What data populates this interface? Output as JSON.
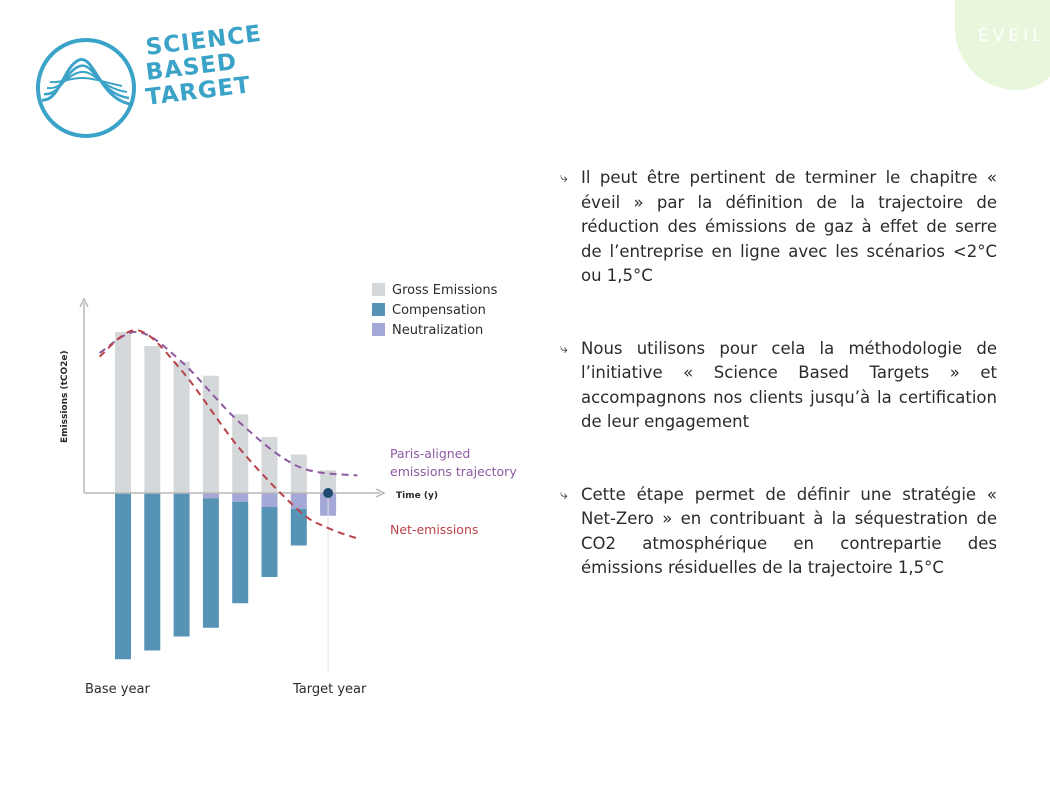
{
  "logo": {
    "lines": [
      "SCIENCE",
      "BASED",
      "TARGET"
    ]
  },
  "tag": {
    "label": "ÉVEIL"
  },
  "bullets": [
    "Il peut être pertinent de terminer le chapitre « éveil » par la définition de la trajectoire de réduction des émissions de gaz à effet de serre de l’entreprise en ligne avec les scénarios <2°C ou 1,5°C",
    "Nous utilisons pour cela la méthodologie de l’initiative « Science Based Targets » et accompagnons nos clients jusqu’à la certification de leur engagement",
    "Cette étape permet de définir une stratégie « Net-Zero » en contribuant à la séquestration de CO2 atmosphérique en contrepartie des émissions résiduelles de la trajectoire 1,5°C"
  ],
  "colors": {
    "gross": "#d5d8da",
    "compensation": "#5693b5",
    "neutralization": "#a4a8d6",
    "paris_line": "#8e5aa0",
    "net_line": "#b8434a",
    "logo": "#3aa3c7",
    "tag_bg": "#e8f7db"
  },
  "chart_data": {
    "type": "bar",
    "ylabel": "Emissions (tCO2e)",
    "xlabel": "Time (y)",
    "categories": [
      "Base year",
      "",
      "",
      "",
      "",
      "",
      "",
      "Target year"
    ],
    "x_tick_labels": [
      "Base year",
      "Target year"
    ],
    "series": [
      {
        "name": "Gross Emissions",
        "values": [
          9.2,
          8.4,
          7.5,
          6.7,
          4.5,
          3.2,
          2.2,
          1.3
        ]
      },
      {
        "name": "Compensation",
        "values": [
          -9.5,
          -9.0,
          -8.2,
          -7.7,
          -6.3,
          -4.8,
          -3.0,
          0
        ]
      },
      {
        "name": "Neutralization",
        "values": [
          0,
          0,
          0,
          -0.3,
          -0.5,
          -0.8,
          -0.9,
          -1.3
        ]
      }
    ],
    "lines": [
      {
        "name": "Paris-aligned emissions trajectory",
        "x": [
          -0.8,
          0.5,
          2,
          4,
          6,
          8
        ],
        "y": [
          8.0,
          9.2,
          7.5,
          4.0,
          1.5,
          1.0
        ]
      },
      {
        "name": "Net-emissions",
        "x": [
          -0.8,
          0.5,
          2,
          4,
          6,
          7,
          8
        ],
        "y": [
          7.8,
          9.3,
          7.0,
          2.5,
          -1.0,
          -2.0,
          -2.6
        ]
      }
    ],
    "net_zero_marker": {
      "x": 7,
      "y": 0
    },
    "ylim": [
      -10,
      10
    ],
    "legend_position": "top-right",
    "grid": false
  }
}
